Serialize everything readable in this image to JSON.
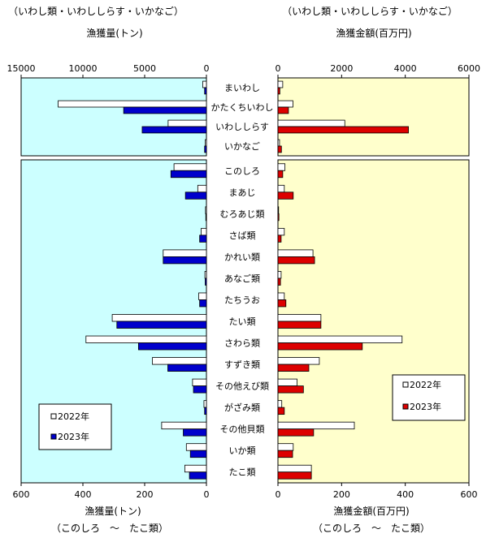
{
  "left_panel": {
    "subtitle": "（いわし類・いわししらす・いかなご）",
    "top_axis_title": "漁獲量(トン)",
    "bottom_axis_title": "漁獲量(トン)",
    "bottom_note": "（このしろ　～　たこ類）",
    "legend": [
      "2022年",
      "2023年"
    ]
  },
  "right_panel": {
    "subtitle": "（いわし類・いわししらす・いかなご）",
    "top_axis_title": "漁獲金額(百万円)",
    "bottom_axis_title": "漁獲金額(百万円)",
    "bottom_note": "（このしろ　～　たこ類）",
    "legend": [
      "2022年",
      "2023年"
    ]
  },
  "colors": {
    "left_bg": "#ccffff",
    "right_bg": "#ffffcc",
    "bar_2022": "#ffffff",
    "bar_2023_left": "#0000cc",
    "bar_2023_right": "#dd0000"
  },
  "chart_data": [
    {
      "type": "bar",
      "orientation": "horizontal-mirrored",
      "title": "漁獲量(トン)",
      "series_names": [
        "2022年",
        "2023年"
      ],
      "upper": {
        "xlim": [
          0,
          15000
        ],
        "ticks": [
          "15000",
          "10000",
          "5000",
          "0"
        ],
        "categories": [
          "まいわし",
          "かたくちいわし",
          "いわししらす",
          "いかなご"
        ],
        "series": [
          {
            "name": "2022年",
            "values": [
              300,
              12000,
              3100,
              100
            ]
          },
          {
            "name": "2023年",
            "values": [
              150,
              6700,
              5200,
              150
            ]
          }
        ]
      },
      "lower": {
        "xlim": [
          0,
          600
        ],
        "ticks": [
          "600",
          "400",
          "200",
          "0"
        ],
        "categories": [
          "このしろ",
          "まあじ",
          "むろあじ類",
          "さば類",
          "かれい類",
          "あなご類",
          "たちうお",
          "たい類",
          "さわら類",
          "すずき類",
          "その他えび類",
          "がざみ類",
          "その他貝類",
          "いか類",
          "たこ類"
        ],
        "series": [
          {
            "name": "2022年",
            "values": [
              105,
              28,
              3,
              17,
              140,
              5,
              25,
              305,
              390,
              175,
              45,
              8,
              145,
              65,
              70
            ]
          },
          {
            "name": "2023年",
            "values": [
              115,
              68,
              2,
              22,
              140,
              4,
              22,
              290,
              220,
              125,
              42,
              6,
              75,
              52,
              55
            ]
          }
        ]
      }
    },
    {
      "type": "bar",
      "orientation": "horizontal",
      "title": "漁獲金額(百万円)",
      "series_names": [
        "2022年",
        "2023年"
      ],
      "upper": {
        "xlim": [
          0,
          6000
        ],
        "ticks": [
          "0",
          "2000",
          "4000",
          "6000"
        ],
        "categories": [
          "まいわし",
          "かたくちいわし",
          "いわししらす",
          "いかなご"
        ],
        "series": [
          {
            "name": "2022年",
            "values": [
              150,
              470,
              2100,
              50
            ]
          },
          {
            "name": "2023年",
            "values": [
              60,
              330,
              4100,
              110
            ]
          }
        ]
      },
      "lower": {
        "xlim": [
          0,
          600
        ],
        "ticks": [
          "0",
          "200",
          "400",
          "600"
        ],
        "categories": [
          "このしろ",
          "まあじ",
          "むろあじ類",
          "さば類",
          "かれい類",
          "あなご類",
          "たちうお",
          "たい類",
          "さわら類",
          "すずき類",
          "その他えび類",
          "がざみ類",
          "その他貝類",
          "いか類",
          "たこ類"
        ],
        "series": [
          {
            "name": "2022年",
            "values": [
              22,
              20,
              2,
              20,
              110,
              10,
              20,
              135,
              390,
              130,
              60,
              12,
              240,
              48,
              105
            ]
          },
          {
            "name": "2023年",
            "values": [
              15,
              48,
              3,
              10,
              115,
              8,
              25,
              135,
              265,
              97,
              80,
              20,
              112,
              46,
              105
            ]
          }
        ]
      }
    }
  ]
}
